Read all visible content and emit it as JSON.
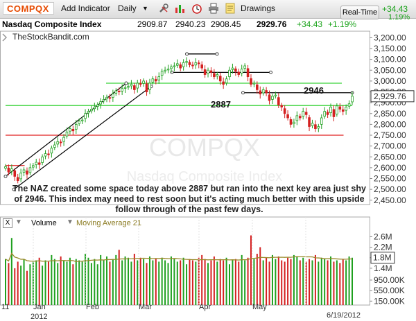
{
  "toolbar": {
    "symbol": "COMPQX",
    "add_indicator": "Add Indicator",
    "period": "Daily",
    "period_arrow": "▼",
    "drawings": "Drawings",
    "realtime": "Real-Time",
    "rt_change": "+34.43",
    "rt_pct": "1.19%",
    "icons": [
      "wrench-icon",
      "bar-chart-icon",
      "alarm-clock-icon",
      "printer-icon",
      "notes-icon"
    ]
  },
  "quote": {
    "name": "Nasdaq Composite Index",
    "open": "2909.87",
    "high": "2940.23",
    "low": "2908.45",
    "last": "2929.76",
    "change": "+34.43",
    "pct": "+1.19%"
  },
  "watermark": {
    "brand": "TheStockBandit.com",
    "symbol": "COMPQX",
    "name": "Nasdaq Composite Index"
  },
  "annotations": {
    "level_2946": "2946",
    "level_2887": "2887",
    "commentary": "The NAZ created some space today above 2887 but ran into the next key area just shy of 2946. This index may need to rest soon but it's acting much better with this upside follow through of the past few days."
  },
  "volume_panel": {
    "close": "X",
    "label": "Volume",
    "ma_label": "Moving Average 21",
    "current": "1.8M"
  },
  "colors": {
    "up": "#1fa01f",
    "down": "#d42020",
    "support_green": "#3bd33b",
    "resistance_red": "#e02020",
    "trendline": "#000000",
    "ma": "#9a8a2a",
    "accent_symbol": "#e64a00"
  },
  "chart_data": [
    {
      "type": "candlestick",
      "title": "Nasdaq Composite Index",
      "price_axis": [
        "3,200.00",
        "3,150.00",
        "3,100.00",
        "3,050.00",
        "3,000.00",
        "2,950.00",
        "2,900.00",
        "2,850.00",
        "2,800.00",
        "2,750.00",
        "2,700.00",
        "2,650.00",
        "2,600.00",
        "2,550.00",
        "2,500.00",
        "2,450.00"
      ],
      "last_price_label": "2,929.76",
      "ylim": [
        2430,
        3230
      ],
      "x_ticks": [
        "11",
        "Jan",
        "2012",
        "Feb",
        "Mar",
        "Apr",
        "May",
        "6/19/2012"
      ],
      "horizontal_levels": [
        {
          "value": 2887,
          "color": "green"
        },
        {
          "value": 2946,
          "color": "black"
        },
        {
          "value": 2750,
          "color": "red"
        },
        {
          "value": 2990,
          "color": "green"
        },
        {
          "value": 3040,
          "color": "black"
        },
        {
          "value": 3125,
          "color": "black"
        },
        {
          "value": 2610,
          "color": "red"
        }
      ],
      "closes": [
        2605,
        2580,
        2595,
        2560,
        2540,
        2575,
        2590,
        2570,
        2600,
        2610,
        2625,
        2615,
        2650,
        2665,
        2660,
        2690,
        2705,
        2720,
        2715,
        2740,
        2765,
        2780,
        2770,
        2800,
        2815,
        2820,
        2850,
        2860,
        2870,
        2880,
        2890,
        2905,
        2915,
        2925,
        2920,
        2940,
        2955,
        2950,
        2965,
        2970,
        2975,
        2985,
        2960,
        2990,
        2985,
        3000,
        2950,
        2990,
        3010,
        3000,
        3020,
        3045,
        3050,
        3055,
        3065,
        3070,
        3080,
        3060,
        3085,
        3090,
        3075,
        3070,
        3085,
        3080,
        3060,
        3030,
        3050,
        3040,
        3020,
        3030,
        3000,
        2985,
        3010,
        3050,
        3060,
        3045,
        3030,
        3055,
        3070,
        3020,
        2985,
        2990,
        2960,
        2940,
        2960,
        2945,
        2910,
        2930,
        2935,
        2890,
        2880,
        2850,
        2830,
        2800,
        2810,
        2840,
        2830,
        2860,
        2845,
        2790,
        2805,
        2780,
        2790,
        2830,
        2860,
        2845,
        2880,
        2835,
        2885,
        2870,
        2860,
        2880,
        2895,
        2930
      ]
    },
    {
      "type": "bar",
      "title": "Volume",
      "axis_labels": [
        "2.6M",
        "2.2M",
        "1.8M",
        "1.4M",
        "950.00K",
        "550.00K",
        "150.00K"
      ],
      "ylim": [
        0,
        2900000
      ],
      "series": [
        {
          "name": "Volume",
          "values": [
            1750000,
            1600000,
            2550000,
            1400000,
            1650000,
            1500000,
            1750000,
            1300000,
            1550000,
            1650000,
            1700000,
            1800000,
            1500000,
            1700000,
            1650000,
            1900000,
            1750000,
            1600000,
            1850000,
            1700000,
            1650000,
            1800000,
            1550000,
            1750000,
            1700000,
            1650000,
            1950000,
            1800000,
            1600000,
            1750000,
            1550000,
            1900000,
            1700000,
            1850000,
            1650000,
            1750000,
            1900000,
            2100000,
            1700000,
            1850000,
            1800000,
            1650000,
            1950000,
            1700000,
            1800000,
            1750000,
            1600000,
            1850000,
            1700000,
            1750000,
            1650000,
            1800000,
            1700000,
            1600000,
            1850000,
            1750000,
            1650000,
            1700000,
            1800000,
            1550000,
            1750000,
            1700000,
            1650000,
            1800000,
            1900000,
            1750000,
            1600000,
            1700000,
            1850000,
            1650000,
            1750000,
            1700000,
            1800000,
            1550000,
            1700000,
            1750000,
            1650000,
            1900000,
            1700000,
            1800000,
            2650000,
            1750000,
            1950000,
            2200000,
            1700000,
            1800000,
            1650000,
            1900000,
            1750000,
            1850000,
            1700000,
            1650000,
            1800000,
            1750000,
            1900000,
            1850000,
            1700000,
            1800000,
            1650000,
            1750000,
            1700000,
            1900000,
            1650000,
            1800000,
            1750000,
            1700000,
            1850000,
            1650000,
            1700000,
            1600000,
            1750000,
            1700000,
            1850000,
            1800000
          ]
        },
        {
          "name": "Moving Average 21",
          "values": "21-period moving average of Volume"
        }
      ]
    }
  ]
}
